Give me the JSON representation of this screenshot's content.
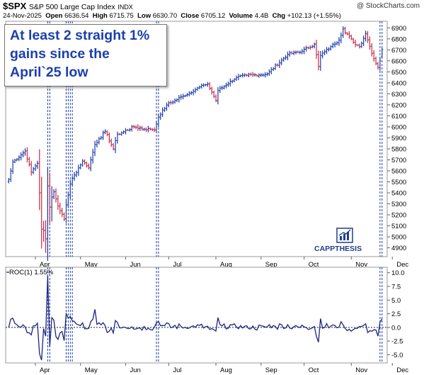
{
  "header": {
    "symbol": "$SPX",
    "name": "S&P 500 Large Cap Index",
    "exchange": "INDX",
    "source": "@ StockCharts.com",
    "date": "24-Nov-2025",
    "open_label": "Open",
    "open_value": "6636.54",
    "high_label": "High",
    "high_value": "6715.75",
    "low_label": "Low",
    "low_value": "6630.70",
    "close_label": "Close",
    "close_value": "6705.12",
    "volume_label": "Volume",
    "volume_value": "4.4B",
    "chg_label": "Chg",
    "chg_value": "+102.13 (+1.55%)"
  },
  "callout": {
    "line1": "At least 2 straight 1%",
    "line2": "gains since the",
    "line3": "April`25 low"
  },
  "logo": {
    "text": "CAPPTHESIS",
    "icon": "bar-chart-logo-icon"
  },
  "colors": {
    "up": "#1a3ba8",
    "down": "#c62846",
    "marker_line": "#1a3ba8",
    "roc_line": "#1a2580",
    "callout_text": "#1b3fae",
    "logo": "#1e3f8a"
  },
  "chart_data": [
    {
      "type": "ohlc",
      "title": "$SPX S&P 500 Large Cap Index INDX",
      "x_tick_labels": [
        "Apr",
        "May",
        "Jun",
        "Jul",
        "Aug",
        "Sep",
        "Oct",
        "Nov",
        "Dec"
      ],
      "y_ticks": [
        4900,
        5000,
        5100,
        5200,
        5300,
        5400,
        5500,
        5600,
        5700,
        5800,
        5900,
        6000,
        6100,
        6200,
        6300,
        6400,
        6500,
        6600,
        6700,
        6800,
        6900
      ],
      "ylim": [
        4820,
        6960
      ],
      "anchors": [
        [
          "2025-03-13",
          5520
        ],
        [
          "2025-03-17",
          5680
        ],
        [
          "2025-03-25",
          5780
        ],
        [
          "2025-03-28",
          5590
        ],
        [
          "2025-03-31",
          5620
        ],
        [
          "2025-04-02",
          5670
        ],
        [
          "2025-04-03",
          5400
        ],
        [
          "2025-04-04",
          5070
        ],
        [
          "2025-04-07",
          5060
        ],
        [
          "2025-04-08",
          4980
        ],
        [
          "2025-04-09",
          5460
        ],
        [
          "2025-04-10",
          5270
        ],
        [
          "2025-04-11",
          5360
        ],
        [
          "2025-04-14",
          5410
        ],
        [
          "2025-04-16",
          5280
        ],
        [
          "2025-04-21",
          5160
        ],
        [
          "2025-04-22",
          5290
        ],
        [
          "2025-04-23",
          5380
        ],
        [
          "2025-04-24",
          5480
        ],
        [
          "2025-04-25",
          5530
        ],
        [
          "2025-05-02",
          5690
        ],
        [
          "2025-05-07",
          5630
        ],
        [
          "2025-05-12",
          5840
        ],
        [
          "2025-05-14",
          5890
        ],
        [
          "2025-05-19",
          5960
        ],
        [
          "2025-05-23",
          5800
        ],
        [
          "2025-05-27",
          5930
        ],
        [
          "2025-06-06",
          6000
        ],
        [
          "2025-06-13",
          5980
        ],
        [
          "2025-06-18",
          5980
        ],
        [
          "2025-06-20",
          5970
        ],
        [
          "2025-06-24",
          6090
        ],
        [
          "2025-06-30",
          6200
        ],
        [
          "2025-07-10",
          6280
        ],
        [
          "2025-07-24",
          6380
        ],
        [
          "2025-07-28",
          6390
        ],
        [
          "2025-08-01",
          6240
        ],
        [
          "2025-08-04",
          6330
        ],
        [
          "2025-08-15",
          6450
        ],
        [
          "2025-08-22",
          6470
        ],
        [
          "2025-09-05",
          6480
        ],
        [
          "2025-09-19",
          6660
        ],
        [
          "2025-09-30",
          6690
        ],
        [
          "2025-10-08",
          6750
        ],
        [
          "2025-10-10",
          6550
        ],
        [
          "2025-10-13",
          6650
        ],
        [
          "2025-10-20",
          6730
        ],
        [
          "2025-10-24",
          6790
        ],
        [
          "2025-10-28",
          6890
        ],
        [
          "2025-11-04",
          6770
        ],
        [
          "2025-11-07",
          6730
        ],
        [
          "2025-11-12",
          6850
        ],
        [
          "2025-11-14",
          6730
        ],
        [
          "2025-11-18",
          6620
        ],
        [
          "2025-11-20",
          6540
        ],
        [
          "2025-11-21",
          6600
        ],
        [
          "2025-11-24",
          6705
        ]
      ],
      "last_bar": {
        "date": "2025-11-24",
        "open": 6636.54,
        "high": 6715.75,
        "low": 6630.7,
        "close": 6705.12
      }
    },
    {
      "type": "line",
      "series": [
        {
          "name": "ROC(1)",
          "last": 1.55
        }
      ],
      "legend": "ROC(1) 1.55%",
      "y_ticks": [
        -5.0,
        -2.5,
        0.0,
        2.5,
        5.0,
        7.5,
        10.0
      ],
      "y_tick_labels": [
        "-5.0",
        "-2.5",
        "0.0",
        "2.5",
        "5.0",
        "7.5",
        "10.0"
      ],
      "ylim": [
        -6.5,
        11.0
      ],
      "x_tick_labels": [
        "Apr",
        "May",
        "Jun",
        "Jul",
        "Aug",
        "Sep",
        "Oct",
        "Nov",
        "Dec"
      ],
      "notable_points": [
        [
          "2025-04-03",
          -4.8
        ],
        [
          "2025-04-04",
          -6.0
        ],
        [
          "2025-04-07",
          -0.2
        ],
        [
          "2025-04-08",
          -1.6
        ],
        [
          "2025-04-09",
          9.5
        ],
        [
          "2025-04-10",
          -3.5
        ],
        [
          "2025-04-11",
          1.8
        ],
        [
          "2025-04-16",
          -2.2
        ],
        [
          "2025-04-21",
          -2.4
        ],
        [
          "2025-04-22",
          2.5
        ],
        [
          "2025-04-23",
          1.7
        ],
        [
          "2025-04-24",
          2.0
        ],
        [
          "2025-05-12",
          3.3
        ],
        [
          "2025-06-24",
          1.1
        ],
        [
          "2025-10-10",
          -2.7
        ],
        [
          "2025-11-20",
          -1.6
        ],
        [
          "2025-11-21",
          1.0
        ],
        [
          "2025-11-24",
          1.55
        ]
      ]
    }
  ],
  "marker_dates": [
    "2025-04-09",
    "2025-04-10",
    "2025-04-22",
    "2025-04-23",
    "2025-04-24",
    "2025-04-25",
    "2025-06-23",
    "2025-06-24",
    "2025-11-21",
    "2025-11-24"
  ]
}
